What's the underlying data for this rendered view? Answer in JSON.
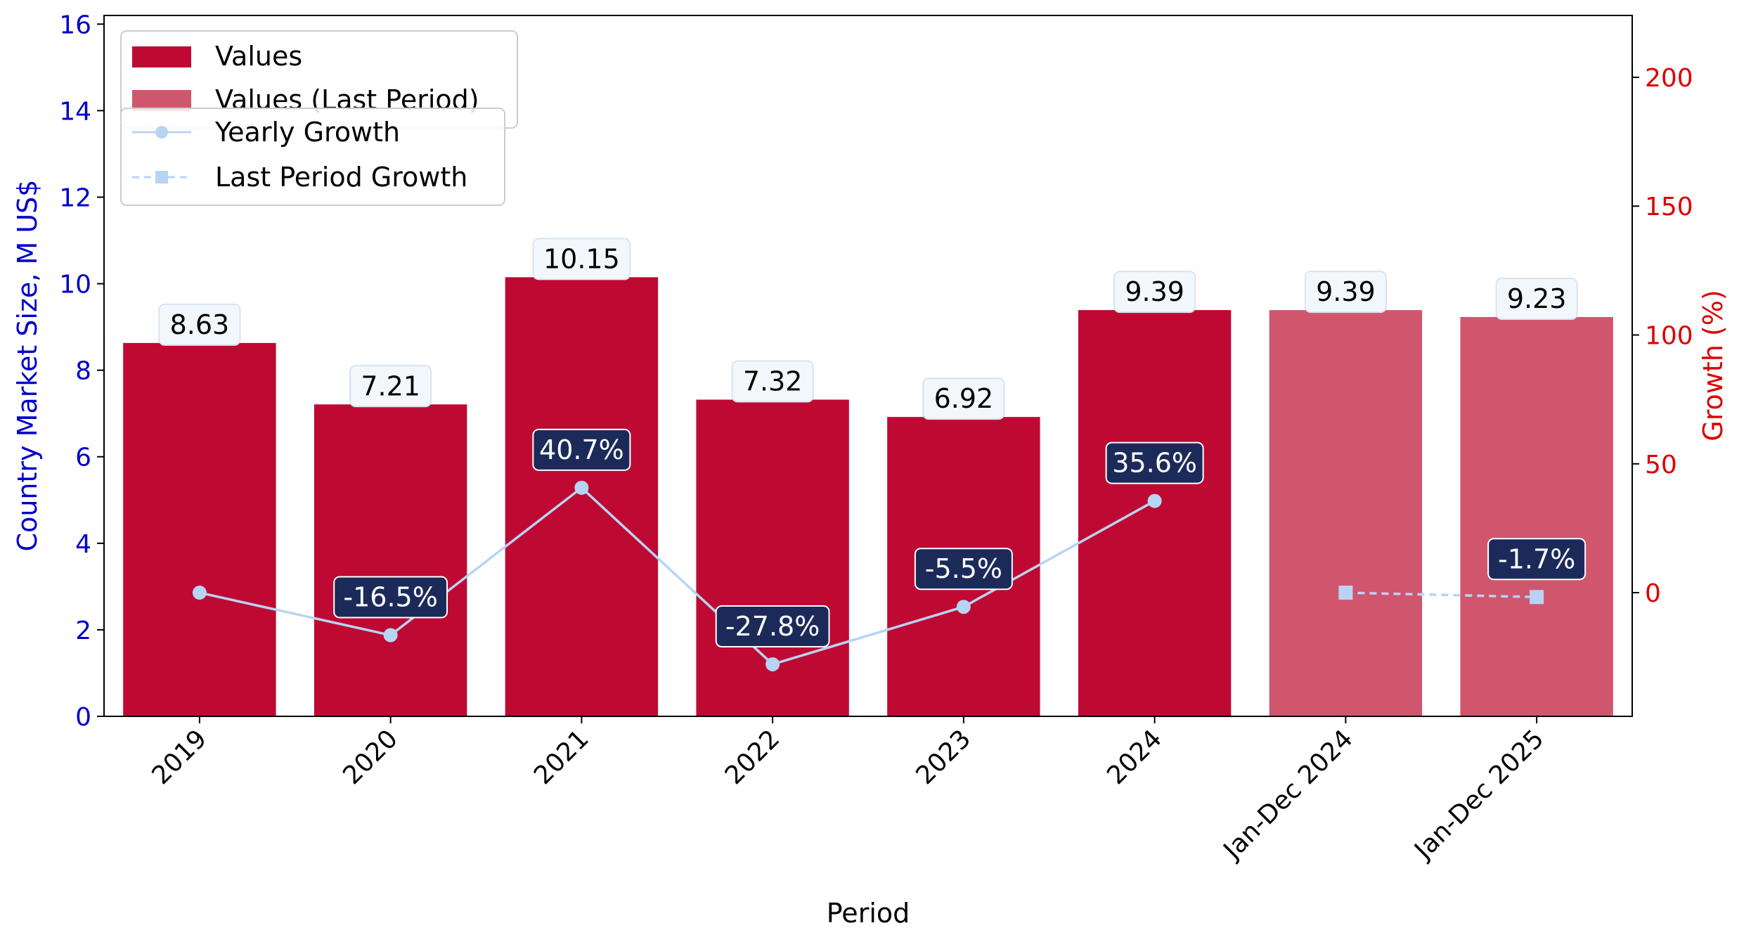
{
  "chart_data": {
    "type": "bar",
    "categories": [
      "2019",
      "2020",
      "2021",
      "2022",
      "2023",
      "2024",
      "Jan-Dec 2024",
      "Jan-Dec 2025"
    ],
    "series": [
      {
        "name": "Values",
        "values": [
          8.63,
          7.21,
          10.15,
          7.32,
          6.92,
          9.39,
          null,
          null
        ],
        "labels": [
          "8.63",
          "7.21",
          "10.15",
          "7.32",
          "6.92",
          "9.39",
          "",
          ""
        ],
        "color": "#be0a32",
        "axis": "left"
      },
      {
        "name": "Values (Last Period)",
        "values": [
          null,
          null,
          null,
          null,
          null,
          null,
          9.39,
          9.23
        ],
        "labels": [
          "",
          "",
          "",
          "",
          "",
          "",
          "9.39",
          "9.23"
        ],
        "color": "#d0566e",
        "axis": "left"
      },
      {
        "name": "Yearly Growth",
        "type": "line",
        "marker": "circle",
        "values": [
          0,
          -16.5,
          40.7,
          -27.8,
          -5.5,
          35.6,
          null,
          null
        ],
        "labels": [
          "",
          "-16.5%",
          "40.7%",
          "-27.8%",
          "-5.5%",
          "35.6%",
          "",
          ""
        ],
        "color": "#b8d4f4",
        "axis": "right"
      },
      {
        "name": "Last Period Growth",
        "type": "line",
        "marker": "square",
        "dashed": true,
        "values": [
          null,
          null,
          null,
          null,
          null,
          null,
          0,
          -1.7
        ],
        "labels": [
          "",
          "",
          "",
          "",
          "",
          "",
          "",
          "-1.7%"
        ],
        "color": "#b8d4f4",
        "axis": "right"
      }
    ],
    "xlabel": "Period",
    "ylabel": "Country Market Size, M US$",
    "ylabel_right": "Growth (%)",
    "ylim": [
      0,
      16.2
    ],
    "ylim_right": [
      -48,
      224
    ],
    "yticks": [
      "0",
      "2",
      "4",
      "6",
      "8",
      "10",
      "12",
      "14",
      "16"
    ],
    "yticks_right": [
      "0",
      "50",
      "100",
      "150",
      "200"
    ],
    "left_axis_color": "#0000cc",
    "right_axis_color": "#dd0000",
    "label_box_color": "#1c2a5a",
    "value_box_color": "#f2f7fc",
    "grid": false,
    "legend_position": "top-left"
  }
}
